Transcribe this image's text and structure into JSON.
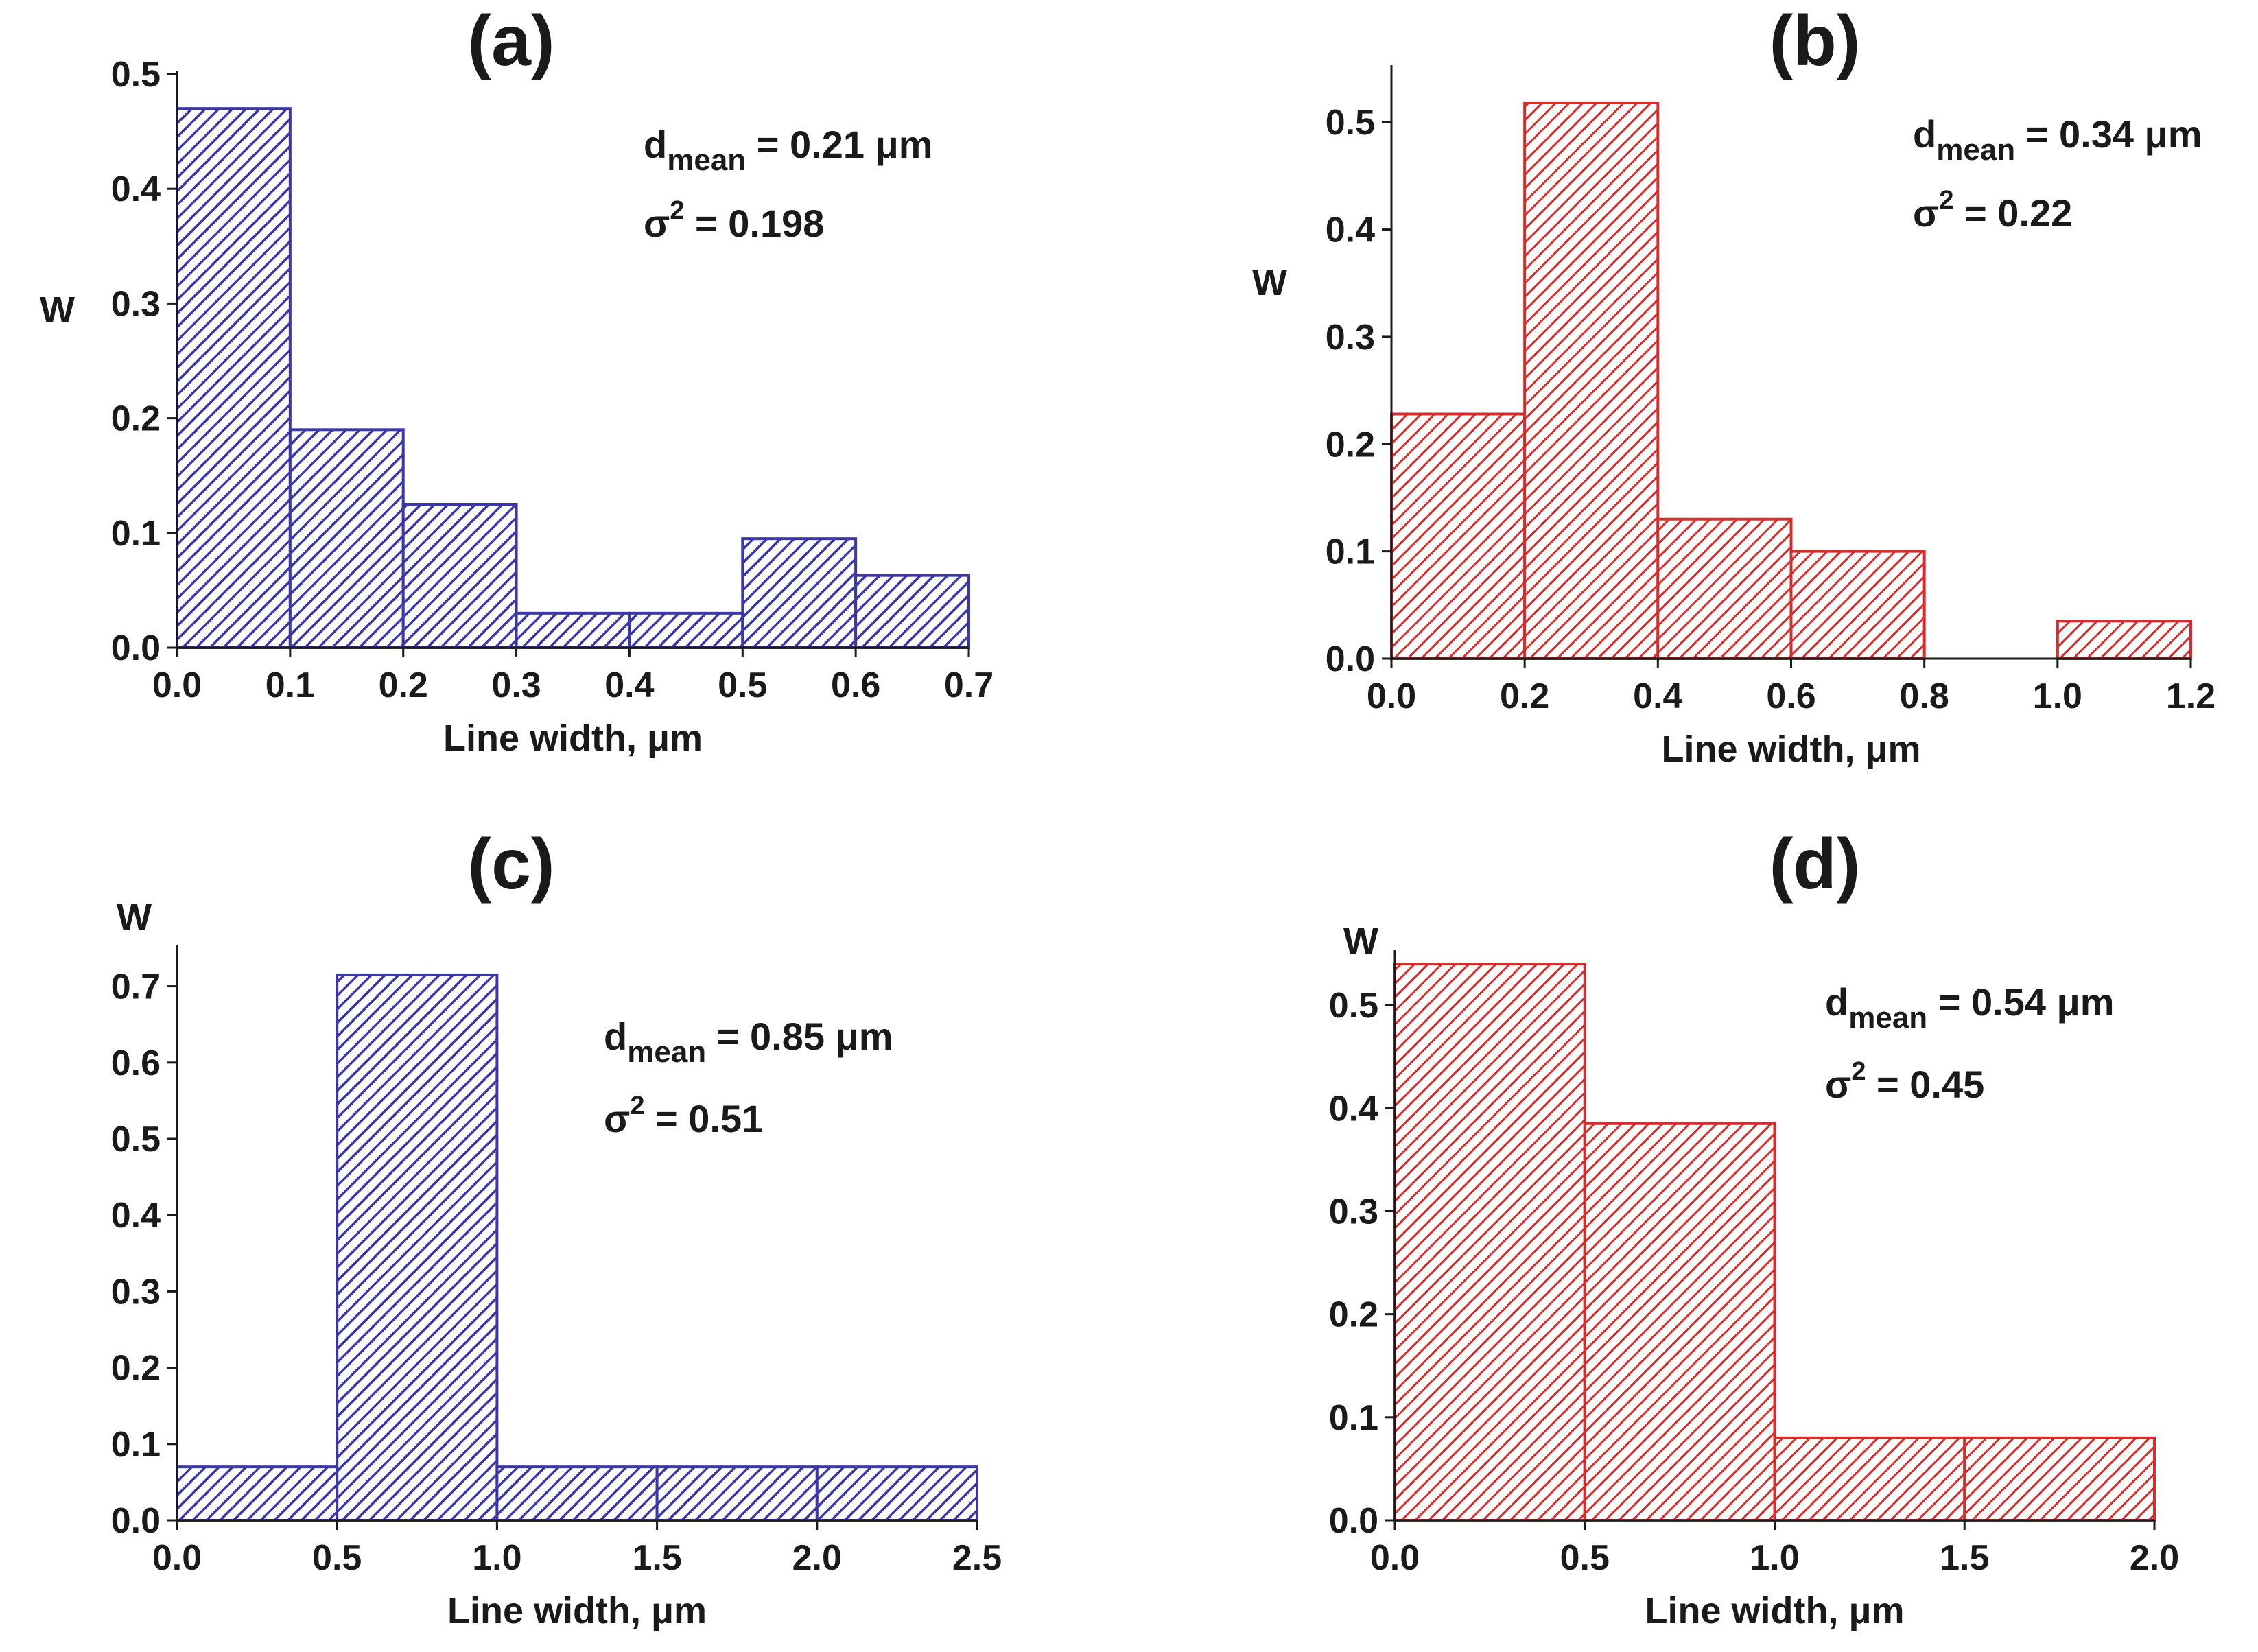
{
  "chart_data": [
    {
      "type": "bar",
      "panel": "(a)",
      "xlabel": "Line width, μm",
      "ylabel": "W",
      "xlim": [
        0,
        0.7
      ],
      "ylim": [
        0,
        0.5
      ],
      "xticks": [
        "0.0",
        "0.1",
        "0.2",
        "0.3",
        "0.4",
        "0.5",
        "0.6",
        "0.7"
      ],
      "yticks": [
        "0.0",
        "0.1",
        "0.2",
        "0.3",
        "0.4",
        "0.5"
      ],
      "bins": [
        [
          0,
          0.1
        ],
        [
          0.1,
          0.2
        ],
        [
          0.2,
          0.3
        ],
        [
          0.3,
          0.4
        ],
        [
          0.4,
          0.5
        ],
        [
          0.5,
          0.6
        ],
        [
          0.6,
          0.7
        ]
      ],
      "values": [
        0.47,
        0.19,
        0.125,
        0.03,
        0.03,
        0.095,
        0.063
      ],
      "color": "#3b37a8",
      "annotation": {
        "d_label": "d",
        "d_sub": "mean",
        "d_value": " = 0.21 μm",
        "s_label": "σ",
        "s_sup": "2",
        "s_value": " = 0.198"
      }
    },
    {
      "type": "bar",
      "panel": "(b)",
      "xlabel": "Line width, μm",
      "ylabel": "W",
      "xlim": [
        0,
        1.2
      ],
      "ylim": [
        0,
        0.55
      ],
      "xticks": [
        "0.0",
        "0.2",
        "0.4",
        "0.6",
        "0.8",
        "1.0",
        "1.2"
      ],
      "yticks": [
        "0.0",
        "0.1",
        "0.2",
        "0.3",
        "0.4",
        "0.5"
      ],
      "bins": [
        [
          0,
          0.2
        ],
        [
          0.2,
          0.4
        ],
        [
          0.4,
          0.6
        ],
        [
          0.6,
          0.8
        ],
        [
          1.0,
          1.2
        ]
      ],
      "values": [
        0.228,
        0.518,
        0.13,
        0.1,
        0.035
      ],
      "color": "#d62c2c",
      "annotation": {
        "d_label": "d",
        "d_sub": "mean",
        "d_value": " = 0.34 μm",
        "s_label": "σ",
        "s_sup": "2",
        "s_value": " = 0.22"
      }
    },
    {
      "type": "bar",
      "panel": "(c)",
      "xlabel": "Line width, μm",
      "ylabel": "W",
      "xlim": [
        0,
        2.5
      ],
      "ylim": [
        0,
        0.75
      ],
      "xticks": [
        "0.0",
        "0.5",
        "1.0",
        "1.5",
        "2.0",
        "2.5"
      ],
      "yticks": [
        "0.0",
        "0.1",
        "0.2",
        "0.3",
        "0.4",
        "0.5",
        "0.6",
        "0.7"
      ],
      "bins": [
        [
          0,
          0.5
        ],
        [
          0.5,
          1.0
        ],
        [
          1.0,
          1.5
        ],
        [
          1.5,
          2.0
        ],
        [
          2.0,
          2.5
        ]
      ],
      "values": [
        0.07,
        0.715,
        0.07,
        0.07,
        0.07
      ],
      "color": "#3b37a8",
      "annotation": {
        "d_label": "d",
        "d_sub": "mean",
        "d_value": " = 0.85 μm",
        "s_label": "σ",
        "s_sup": "2",
        "s_value": " = 0.51"
      }
    },
    {
      "type": "bar",
      "panel": "(d)",
      "xlabel": "Line width, μm",
      "ylabel": "W",
      "xlim": [
        0,
        2.0
      ],
      "ylim": [
        0,
        0.55
      ],
      "xticks": [
        "0.0",
        "0.5",
        "1.0",
        "1.5",
        "2.0"
      ],
      "yticks": [
        "0.0",
        "0.1",
        "0.2",
        "0.3",
        "0.4",
        "0.5"
      ],
      "bins": [
        [
          0,
          0.5
        ],
        [
          0.5,
          1.0
        ],
        [
          1.0,
          1.5
        ],
        [
          1.5,
          2.0
        ]
      ],
      "values": [
        0.54,
        0.385,
        0.08,
        0.08
      ],
      "color": "#d62c2c",
      "annotation": {
        "d_label": "d",
        "d_sub": "mean",
        "d_value": " = 0.54 μm",
        "s_label": "σ",
        "s_sup": "2",
        "s_value": " = 0.45"
      }
    }
  ]
}
